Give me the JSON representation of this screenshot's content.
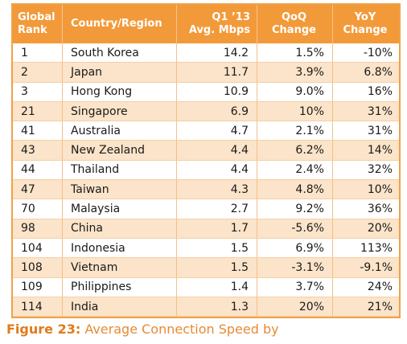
{
  "table": {
    "headers": {
      "rank": [
        "Global",
        "Rank"
      ],
      "country": "Country/Region",
      "speed": [
        "Q1 ’13",
        "Avg. Mbps"
      ],
      "qoq": [
        "QoQ",
        "Change"
      ],
      "yoy": [
        "YoY",
        "Change"
      ]
    },
    "rows": [
      {
        "rank": "1",
        "country": "South Korea",
        "speed": "14.2",
        "qoq": "1.5%",
        "yoy": "-10%"
      },
      {
        "rank": "2",
        "country": "Japan",
        "speed": "11.7",
        "qoq": "3.9%",
        "yoy": "6.8%"
      },
      {
        "rank": "3",
        "country": "Hong Kong",
        "speed": "10.9",
        "qoq": "9.0%",
        "yoy": "16%"
      },
      {
        "rank": "21",
        "country": "Singapore",
        "speed": "6.9",
        "qoq": "10%",
        "yoy": "31%"
      },
      {
        "rank": "41",
        "country": "Australia",
        "speed": "4.7",
        "qoq": "2.1%",
        "yoy": "31%"
      },
      {
        "rank": "43",
        "country": "New Zealand",
        "speed": "4.4",
        "qoq": "6.2%",
        "yoy": "14%"
      },
      {
        "rank": "44",
        "country": "Thailand",
        "speed": "4.4",
        "qoq": "2.4%",
        "yoy": "32%"
      },
      {
        "rank": "47",
        "country": "Taiwan",
        "speed": "4.3",
        "qoq": "4.8%",
        "yoy": "10%"
      },
      {
        "rank": "70",
        "country": "Malaysia",
        "speed": "2.7",
        "qoq": "9.2%",
        "yoy": "36%"
      },
      {
        "rank": "98",
        "country": "China",
        "speed": "1.7",
        "qoq": "-5.6%",
        "yoy": "20%"
      },
      {
        "rank": "104",
        "country": "Indonesia",
        "speed": "1.5",
        "qoq": "6.9%",
        "yoy": "113%"
      },
      {
        "rank": "108",
        "country": "Vietnam",
        "speed": "1.5",
        "qoq": "-3.1%",
        "yoy": "-9.1%"
      },
      {
        "rank": "109",
        "country": "Philippines",
        "speed": "1.4",
        "qoq": "3.7%",
        "yoy": "24%"
      },
      {
        "rank": "114",
        "country": "India",
        "speed": "1.3",
        "qoq": "20%",
        "yoy": "21%"
      }
    ]
  },
  "caption": {
    "figure": "Figure 23:",
    "text": "Average Connection Speed by"
  },
  "colors": {
    "header_bg": "#f29a3a",
    "row_alt_bg": "#fbe4c9",
    "caption": "#e07b1c"
  }
}
